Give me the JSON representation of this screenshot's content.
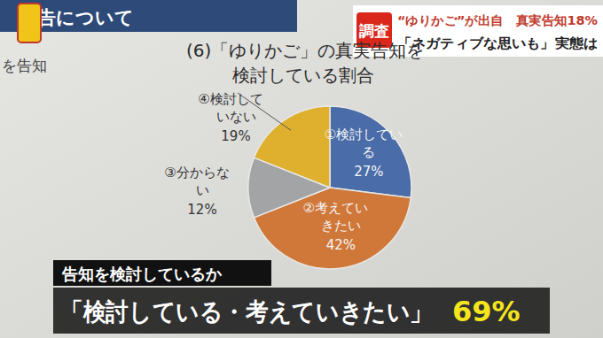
{
  "chart_data": {
    "type": "pie",
    "title": "(6)「ゆりかご」の真実告知を検討している割合",
    "categories": [
      "①検討している",
      "②考えていきたい",
      "③分からない",
      "④検討していない"
    ],
    "values": [
      27,
      42,
      12,
      19
    ],
    "value_labels": [
      "27%",
      "42%",
      "12%",
      "19%"
    ],
    "colors": [
      "#4a6ca8",
      "#d0783a",
      "#a3a4a6",
      "#deb02e"
    ],
    "data_labels": true
  },
  "header": {
    "section": "告について",
    "side_text": "を告知"
  },
  "banner": {
    "tag": "調査",
    "line1": "“ゆりかご”が出自　真実告知18%",
    "line2": "「ネガティブな思いも」実態は"
  },
  "caption": {
    "question": "告知を検討しているか",
    "answer": "「検討している・考えていきたい」",
    "answer_value": "69%"
  }
}
